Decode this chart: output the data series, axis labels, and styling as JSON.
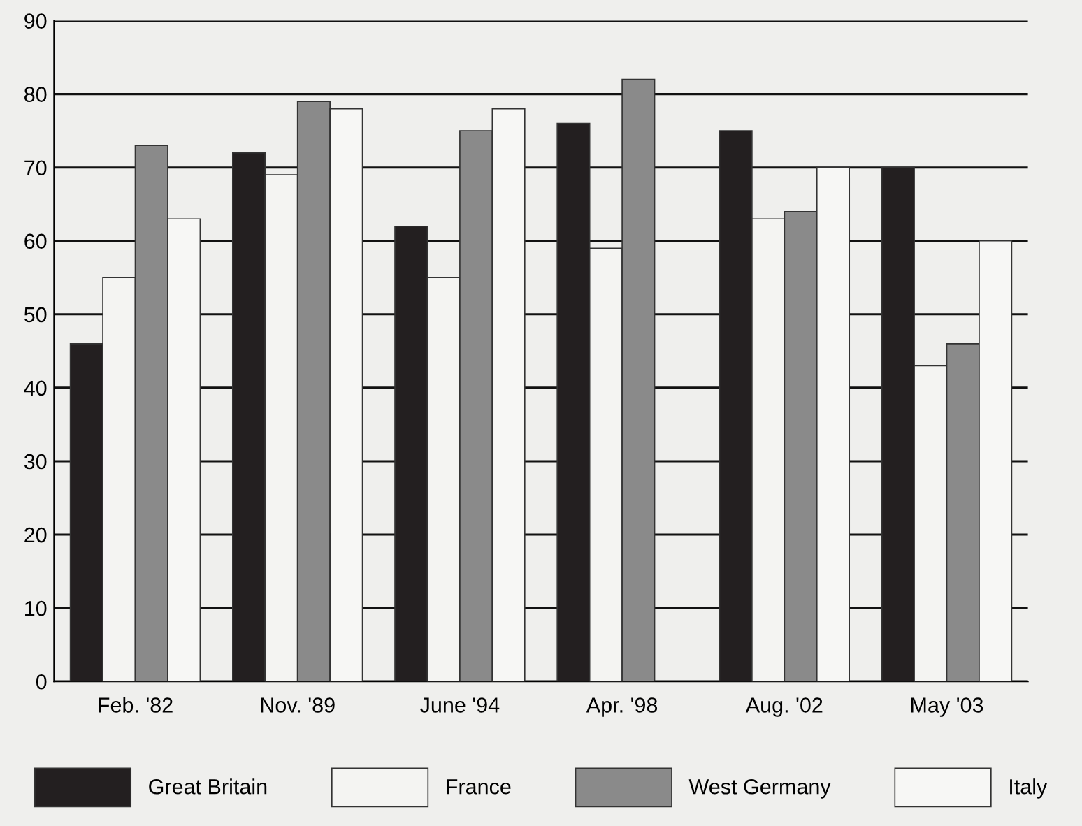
{
  "chart_data": {
    "type": "bar",
    "categories": [
      "Feb. '82",
      "Nov. '89",
      "June '94",
      "Apr. '98",
      "Aug. '02",
      "May '03"
    ],
    "series": [
      {
        "name": "Great Britain",
        "color": "#231f20",
        "values": [
          46,
          72,
          62,
          76,
          75,
          70
        ]
      },
      {
        "name": "France",
        "color": "#f4f4f2",
        "values": [
          55,
          69,
          55,
          59,
          63,
          43
        ]
      },
      {
        "name": "West Germany",
        "color": "#8a8a8a",
        "values": [
          73,
          79,
          75,
          82,
          64,
          46
        ]
      },
      {
        "name": "Italy",
        "color": "#f7f7f5",
        "values": [
          63,
          78,
          78,
          null,
          70,
          60
        ]
      }
    ],
    "ylim": [
      0,
      90
    ],
    "yticks": [
      0,
      10,
      20,
      30,
      40,
      50,
      60,
      70,
      80,
      90
    ],
    "grid": "y",
    "legend": "bottom"
  }
}
